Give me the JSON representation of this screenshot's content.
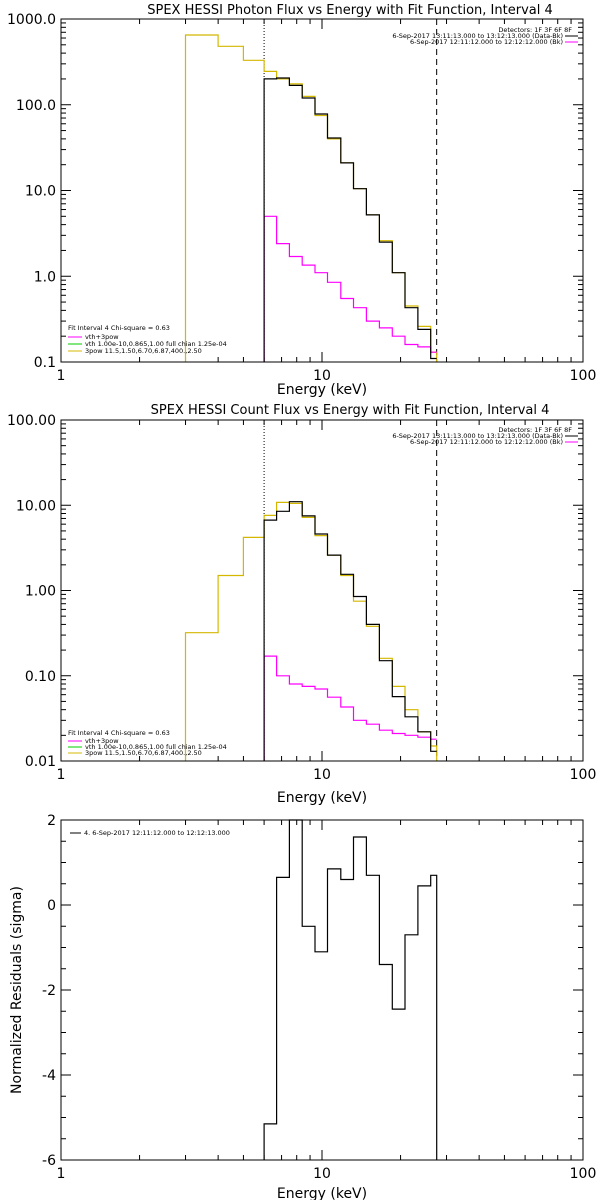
{
  "colors": {
    "data": "#000000",
    "background": "#ff00ff",
    "fit_total": "#ffff00",
    "vth": "#00cc00",
    "model_total": "#d4b800"
  },
  "chart_data": [
    {
      "type": "line",
      "title": "SPEX HESSI Photon Flux vs Energy with Fit Function, Interval 4",
      "xlabel": "Energy (keV)",
      "ylabel": "",
      "xscale": "log",
      "yscale": "log",
      "xlim": [
        1,
        100
      ],
      "ylim": [
        0.1,
        1000
      ],
      "xticks": [
        "1",
        "10",
        "100"
      ],
      "yticks": [
        {
          "v": 0.1,
          "label": "0.1"
        },
        {
          "v": 1,
          "label": "1.0"
        },
        {
          "v": 10,
          "label": "10.0"
        },
        {
          "v": 100,
          "label": "100.0"
        },
        {
          "v": 1000,
          "label": "1000.0"
        }
      ],
      "vlines": [
        {
          "x": 6,
          "style": "dotted"
        },
        {
          "x": 27.5,
          "style": "dashed"
        }
      ],
      "detectors": "Detectors: 1F 3F 6F 8F",
      "legend_top": [
        {
          "text": "6-Sep-2017 13:11:13.000 to 13:12:13.000 (Data-Bk)",
          "color": "#000000"
        },
        {
          "text": "6-Sep-2017 12:11:12.000 to 12:12:12.000 (Bk)",
          "color": "#ff00ff"
        }
      ],
      "fit_info": "Fit Interval 4   Chi-square = 0.63",
      "legend_bottom": [
        {
          "text": "vth+3pow",
          "color": "#ff00ff"
        },
        {
          "text": "vth 1.00e-10,0.865,1.00  full chian 1.25e-04",
          "color": "#00cc00"
        },
        {
          "text": "3pow 11.5,1.50,6.70,6.87,400.,2.50",
          "color": "#d4b800"
        }
      ],
      "edges": [
        3,
        4,
        5,
        6,
        6.7,
        7.5,
        8.4,
        9.4,
        10.5,
        11.8,
        13.2,
        14.8,
        16.6,
        18.6,
        20.8,
        23.3,
        26.1,
        27.5
      ],
      "series": [
        {
          "role": "fit",
          "color": "#d4b800",
          "values": [
            650,
            480,
            330,
            245,
            200,
            175,
            125,
            75,
            40,
            21,
            10.5,
            5.2,
            2.6,
            1.1,
            0.45,
            0.26,
            0.13
          ]
        },
        {
          "role": "data",
          "color": "#000000",
          "start_bin": 3,
          "values": [
            200,
            205,
            168,
            120,
            78,
            41,
            21,
            10.5,
            5.2,
            2.5,
            1.1,
            0.43,
            0.24,
            0.11
          ]
        },
        {
          "role": "background",
          "color": "#ff00ff",
          "start_bin": 3,
          "values": [
            5,
            2.4,
            1.7,
            1.35,
            1.1,
            0.85,
            0.55,
            0.43,
            0.3,
            0.25,
            0.2,
            0.16,
            0.15,
            0.13
          ]
        }
      ]
    },
    {
      "type": "line",
      "title": "SPEX HESSI Count Flux vs Energy with Fit Function, Interval 4",
      "xlabel": "Energy (keV)",
      "ylabel": "",
      "xscale": "log",
      "yscale": "log",
      "xlim": [
        1,
        100
      ],
      "ylim": [
        0.01,
        100
      ],
      "xticks": [
        "1",
        "10",
        "100"
      ],
      "yticks": [
        {
          "v": 0.01,
          "label": "0.01"
        },
        {
          "v": 0.1,
          "label": "0.10"
        },
        {
          "v": 1,
          "label": "1.00"
        },
        {
          "v": 10,
          "label": "10.00"
        },
        {
          "v": 100,
          "label": "100.00"
        }
      ],
      "vlines": [
        {
          "x": 6,
          "style": "dotted"
        },
        {
          "x": 27.5,
          "style": "dashed"
        }
      ],
      "detectors": "Detectors: 1F 3F 6F 8F",
      "legend_top": [
        {
          "text": "6-Sep-2017 13:11:13.000 to 13:12:13.000 (Data-Bk)",
          "color": "#000000"
        },
        {
          "text": "6-Sep-2017 12:11:12.000 to 12:12:12.000 (Bk)",
          "color": "#ff00ff"
        }
      ],
      "fit_info": "Fit Interval 4   Chi-square = 0.63",
      "legend_bottom": [
        {
          "text": "vth+3pow",
          "color": "#ff00ff"
        },
        {
          "text": "vth 1.00e-10,0.865,1.00  full chian 1.25e-04",
          "color": "#00cc00"
        },
        {
          "text": "3pow 11.5,1.50,6.70,6.87,400.,2.50",
          "color": "#d4b800"
        }
      ],
      "edges": [
        3,
        4,
        5,
        6,
        6.7,
        7.5,
        8.4,
        9.4,
        10.5,
        11.8,
        13.2,
        14.8,
        16.6,
        18.6,
        20.8,
        23.3,
        26.1,
        27.5
      ],
      "series": [
        {
          "role": "fit",
          "color": "#d4b800",
          "values": [
            0.32,
            1.5,
            4.2,
            7.6,
            10.8,
            10.5,
            7.2,
            4.4,
            2.6,
            1.5,
            0.75,
            0.38,
            0.16,
            0.075,
            0.04,
            0.022,
            0.015
          ]
        },
        {
          "role": "data",
          "color": "#000000",
          "start_bin": 3,
          "values": [
            6.7,
            8.5,
            11,
            7.5,
            4.6,
            2.6,
            1.55,
            0.85,
            0.4,
            0.15,
            0.057,
            0.033,
            0.022,
            0.013
          ]
        },
        {
          "role": "background",
          "color": "#ff00ff",
          "start_bin": 3,
          "values": [
            0.17,
            0.1,
            0.08,
            0.075,
            0.07,
            0.056,
            0.043,
            0.03,
            0.027,
            0.023,
            0.021,
            0.02,
            0.019,
            0.018
          ]
        }
      ]
    },
    {
      "type": "line",
      "title": "",
      "xlabel": "Energy (keV)",
      "ylabel": "Normalized Residuals (sigma)",
      "xscale": "log",
      "yscale": "linear",
      "xlim": [
        1,
        100
      ],
      "ylim": [
        -6,
        2
      ],
      "xticks": [
        "1",
        "10",
        "100"
      ],
      "yticks": [
        {
          "v": -6,
          "label": "-6"
        },
        {
          "v": -4,
          "label": "-4"
        },
        {
          "v": -2,
          "label": "-2"
        },
        {
          "v": 0,
          "label": "0"
        },
        {
          "v": 2,
          "label": "2"
        }
      ],
      "legend_top": [
        {
          "text": "4.  6-Sep-2017 12:11:12.000 to 12:12:13.000",
          "color": "#000000"
        }
      ],
      "edges": [
        6,
        6.7,
        7.5,
        8.4,
        9.4,
        10.5,
        11.8,
        13.2,
        14.8,
        16.6,
        18.6,
        20.8,
        23.3,
        26.1,
        27.5
      ],
      "series": [
        {
          "role": "residuals",
          "color": "#000000",
          "values": [
            -5.15,
            0.65,
            2.0,
            -0.5,
            -1.1,
            0.85,
            0.6,
            1.6,
            0.7,
            -1.4,
            -2.45,
            -0.7,
            0.45,
            0.7
          ]
        }
      ]
    }
  ]
}
